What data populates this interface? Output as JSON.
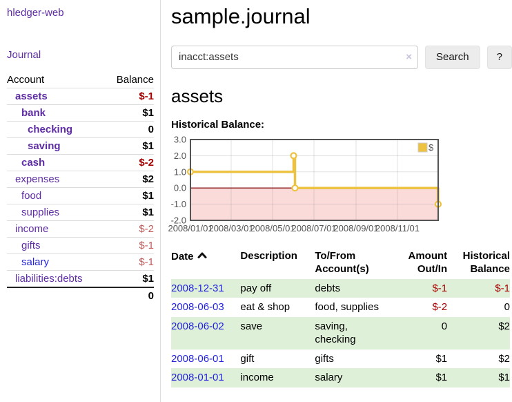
{
  "app": {
    "brand": "hledger-web",
    "nav_journal": "Journal"
  },
  "sidebar": {
    "header": {
      "account": "Account",
      "balance": "Balance"
    },
    "accounts": [
      {
        "name": "assets",
        "indent": 1,
        "balance": "$-1",
        "bold": true,
        "neg": "strong"
      },
      {
        "name": "bank",
        "indent": 2,
        "balance": "$1",
        "bold": true
      },
      {
        "name": "checking",
        "indent": 3,
        "balance": "0",
        "bold": true
      },
      {
        "name": "saving",
        "indent": 3,
        "balance": "$1",
        "bold": true
      },
      {
        "name": "cash",
        "indent": 2,
        "balance": "$-2",
        "bold": true,
        "neg": "strong"
      },
      {
        "name": "expenses",
        "indent": 1,
        "balance": "$2"
      },
      {
        "name": "food",
        "indent": 2,
        "balance": "$1"
      },
      {
        "name": "supplies",
        "indent": 2,
        "balance": "$1"
      },
      {
        "name": "income",
        "indent": 1,
        "balance": "$-2",
        "neg": "soft"
      },
      {
        "name": "gifts",
        "indent": 2,
        "balance": "$-1",
        "neg": "soft"
      },
      {
        "name": "salary",
        "indent": 2,
        "balance": "$-1",
        "neg": "soft",
        "link": "blue"
      },
      {
        "name": "liabilities:debts",
        "indent": 1,
        "balance": "$1"
      }
    ],
    "total": "0"
  },
  "header": {
    "title": "sample.journal"
  },
  "search": {
    "value": "inacct:assets",
    "clear_icon": "×",
    "button": "Search",
    "help_button": "?"
  },
  "account_page": {
    "heading": "assets",
    "chart_label": "Historical Balance:"
  },
  "chart_data": {
    "type": "line",
    "step": true,
    "title": "Historical Balance",
    "legend": [
      {
        "label": "$",
        "color": "#edc240"
      }
    ],
    "series": [
      {
        "name": "$",
        "x": [
          "2008-01-01",
          "2008-06-01",
          "2008-06-03",
          "2008-12-31"
        ],
        "y": [
          1.0,
          2.0,
          0.0,
          -1.0
        ]
      }
    ],
    "x_range": [
      "2008-01-01",
      "2008-12-31"
    ],
    "ylim": [
      -2.0,
      3.0
    ],
    "yticks": [
      "3.0",
      "2.0",
      "1.0",
      "0.0",
      "-1.0",
      "-2.0"
    ],
    "xticks": [
      "2008/01/01",
      "2008/03/01",
      "2008/05/01",
      "2008/07/01",
      "2008/09/01",
      "2008/11/01"
    ],
    "colors": {
      "line": "#edc240",
      "marker_fill": "#ffffff",
      "negative_region": "#fbdada",
      "zero_line": "#8b1a1a",
      "grid": "#888888",
      "border": "#545454",
      "axis_text": "#545454",
      "legend_border": "#cccccc"
    }
  },
  "register": {
    "columns": [
      "Date",
      "Description",
      "To/From Account(s)",
      "Amount Out/In",
      "Historical Balance"
    ],
    "rows": [
      {
        "date": "2008-12-31",
        "description": "pay off",
        "accounts": "debts",
        "amount": "$-1",
        "amount_neg": true,
        "balance": "$-1",
        "balance_neg": true
      },
      {
        "date": "2008-06-03",
        "description": "eat & shop",
        "accounts": "food, supplies",
        "amount": "$-2",
        "amount_neg": true,
        "balance": "0",
        "balance_neg": false
      },
      {
        "date": "2008-06-02",
        "description": "save",
        "accounts": "saving, checking",
        "amount": "0",
        "amount_neg": false,
        "balance": "$2",
        "balance_neg": false
      },
      {
        "date": "2008-06-01",
        "description": "gift",
        "accounts": "gifts",
        "amount": "$1",
        "amount_neg": false,
        "balance": "$2",
        "balance_neg": false
      },
      {
        "date": "2008-01-01",
        "description": "income",
        "accounts": "salary",
        "amount": "$1",
        "amount_neg": false,
        "balance": "$1",
        "balance_neg": false
      }
    ]
  }
}
